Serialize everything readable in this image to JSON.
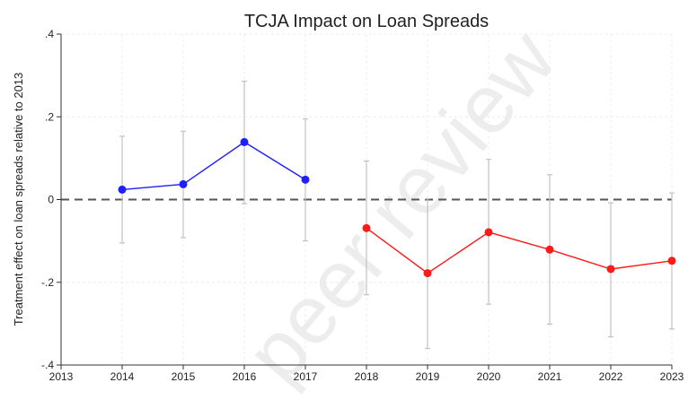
{
  "chart_data": {
    "type": "line",
    "title": "TCJA Impact on Loan Spreads",
    "xlabel": "",
    "ylabel": "Treatment effect on loan spreads relative to 2013",
    "xlim": [
      2013,
      2023
    ],
    "ylim": [
      -0.4,
      0.4
    ],
    "x_ticks": [
      "2013",
      "2014",
      "2015",
      "2016",
      "2017",
      "2018",
      "2019",
      "2020",
      "2021",
      "2022",
      "2023"
    ],
    "y_ticks": [
      ".4",
      ".2",
      "0",
      "-.2",
      "-.4"
    ],
    "y_tick_values": [
      0.4,
      0.2,
      0,
      -0.2,
      -0.4
    ],
    "reference_line": {
      "y": 0,
      "style": "dashed",
      "color": "#555555"
    },
    "grid": true,
    "series": [
      {
        "color": "#1f1fff",
        "x": [
          2014,
          2015,
          2016,
          2017
        ],
        "y": [
          0.024,
          0.037,
          0.139,
          0.048
        ],
        "ci_low": [
          -0.105,
          -0.092,
          -0.01,
          -0.1
        ],
        "ci_high": [
          0.153,
          0.165,
          0.286,
          0.195
        ]
      },
      {
        "color": "#ff1a1a",
        "x": [
          2018,
          2019,
          2020,
          2021,
          2022,
          2023
        ],
        "y": [
          -0.069,
          -0.178,
          -0.079,
          -0.121,
          -0.168,
          -0.148
        ],
        "ci_low": [
          -0.23,
          -0.36,
          -0.253,
          -0.301,
          -0.332,
          -0.313
        ],
        "ci_high": [
          0.093,
          0.002,
          0.097,
          0.06,
          -0.008,
          0.016
        ]
      }
    ],
    "errorbar_color": "#c2c2c2",
    "watermark": "peer review"
  }
}
